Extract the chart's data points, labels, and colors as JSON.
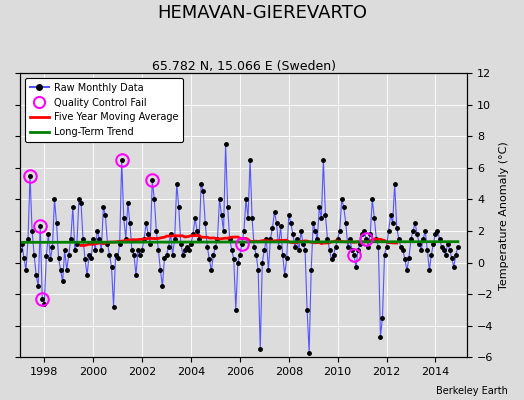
{
  "title": "HEMAVAN-GIEREVARTO",
  "subtitle": "65.782 N, 15.066 E (Sweden)",
  "ylabel": "Temperature Anomaly (°C)",
  "credit": "Berkeley Earth",
  "ylim": [
    -6,
    12
  ],
  "yticks": [
    -6,
    -4,
    -2,
    0,
    2,
    4,
    6,
    8,
    10,
    12
  ],
  "xlim": [
    1997.0,
    2015.3
  ],
  "xticks": [
    1998,
    2000,
    2002,
    2004,
    2006,
    2008,
    2010,
    2012,
    2014
  ],
  "bg_color": "#dcdcdc",
  "plot_bg": "#dcdcdc",
  "line_color": "#5555ff",
  "marker_color": "black",
  "ma_color": "red",
  "trend_color": "green",
  "qc_color": "magenta",
  "title_fontsize": 13,
  "subtitle_fontsize": 9,
  "label_fontsize": 8,
  "tick_fontsize": 8,
  "raw_values": [
    0.8,
    1.2,
    0.3,
    -0.5,
    1.5,
    5.5,
    2.0,
    0.5,
    -0.8,
    -1.5,
    2.3,
    -2.3,
    -2.6,
    0.4,
    1.8,
    0.2,
    1.0,
    4.0,
    2.5,
    0.3,
    -0.5,
    -1.2,
    0.8,
    -0.5,
    0.5,
    1.5,
    3.5,
    0.8,
    1.2,
    4.0,
    3.8,
    1.5,
    0.2,
    -0.8,
    0.5,
    0.3,
    1.5,
    0.8,
    2.0,
    1.5,
    0.8,
    3.5,
    3.0,
    1.2,
    0.5,
    -0.3,
    -2.8,
    0.5,
    0.3,
    1.2,
    6.5,
    2.8,
    1.5,
    3.8,
    2.5,
    0.8,
    0.5,
    -0.8,
    0.8,
    0.5,
    0.8,
    1.5,
    2.5,
    1.8,
    1.2,
    5.2,
    4.0,
    2.0,
    0.8,
    -0.5,
    -1.5,
    0.3,
    0.5,
    1.0,
    1.8,
    0.5,
    1.5,
    5.0,
    3.5,
    1.2,
    0.5,
    0.8,
    1.0,
    0.8,
    1.2,
    1.8,
    2.8,
    2.0,
    1.5,
    5.0,
    4.5,
    2.5,
    1.0,
    0.2,
    -0.5,
    0.5,
    1.0,
    1.5,
    4.0,
    3.0,
    2.0,
    7.5,
    3.5,
    1.5,
    0.8,
    0.2,
    -3.0,
    0.0,
    0.5,
    1.2,
    2.0,
    4.0,
    2.8,
    6.5,
    2.8,
    1.0,
    0.5,
    -0.5,
    -5.5,
    0.0,
    0.8,
    1.5,
    -0.5,
    1.5,
    2.2,
    3.2,
    2.5,
    1.0,
    2.3,
    0.5,
    -0.8,
    0.3,
    3.0,
    2.5,
    1.8,
    1.0,
    1.5,
    0.8,
    2.0,
    1.2,
    0.8,
    -3.0,
    -5.7,
    -0.5,
    2.5,
    2.0,
    1.5,
    3.5,
    2.8,
    6.5,
    3.0,
    1.5,
    0.8,
    0.2,
    0.5,
    1.0,
    1.5,
    2.0,
    4.0,
    3.5,
    2.5,
    1.0,
    1.5,
    0.8,
    0.5,
    -0.3,
    0.8,
    1.2,
    1.8,
    2.0,
    1.5,
    1.0,
    1.8,
    4.0,
    2.8,
    1.5,
    1.0,
    -4.7,
    -3.5,
    0.5,
    1.0,
    2.0,
    3.0,
    2.5,
    5.0,
    2.2,
    1.5,
    1.0,
    0.8,
    0.2,
    -0.5,
    0.3,
    1.5,
    2.0,
    2.5,
    1.8,
    1.2,
    0.8,
    1.5,
    2.0,
    0.8,
    -0.5,
    0.5,
    1.2,
    1.8,
    2.0,
    1.5,
    1.0,
    0.8,
    0.5,
    1.2,
    0.8,
    0.3,
    -0.3,
    0.5,
    1.0
  ],
  "qc_indices": [
    5,
    10,
    11,
    50,
    65,
    109,
    164,
    170
  ],
  "start_year": 1997.0
}
